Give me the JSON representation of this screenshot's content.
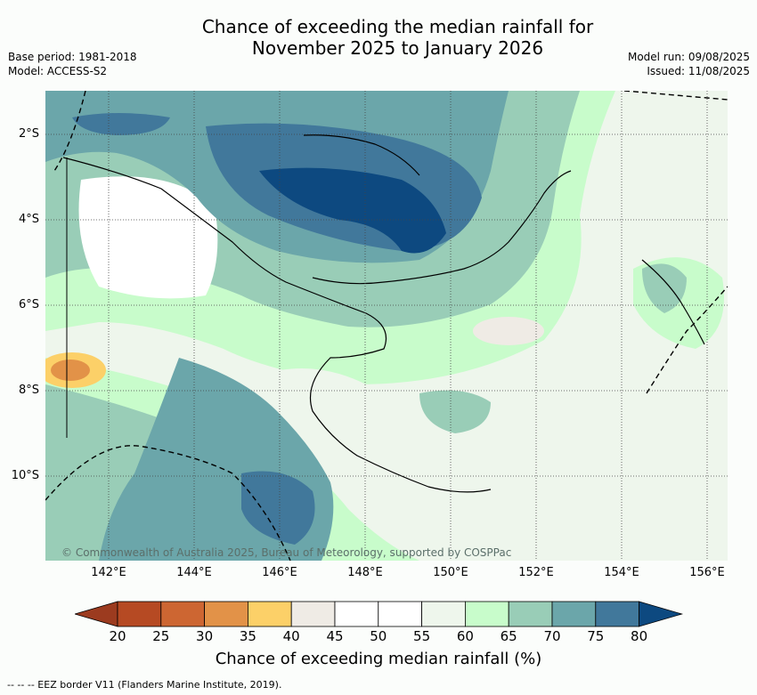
{
  "title_line1": "Chance of exceeding the median rainfall for",
  "title_line2": "November 2025 to January 2026",
  "base_period": "Base period: 1981-2018",
  "model": "Model: ACCESS-S2",
  "model_run": "Model run: 09/08/2025",
  "issued": "Issued: 11/08/2025",
  "copyright": "© Commonwealth of Australia 2025, Bureau of Meteorology, supported by COSPPac",
  "lat_labels": [
    "2°S",
    "4°S",
    "6°S",
    "8°S",
    "10°S"
  ],
  "lon_labels": [
    "142°E",
    "144°E",
    "146°E",
    "148°E",
    "150°E",
    "152°E",
    "154°E",
    "156°E"
  ],
  "colorbar": {
    "ticks": [
      "20",
      "25",
      "30",
      "35",
      "40",
      "45",
      "50",
      "55",
      "60",
      "65",
      "70",
      "75",
      "80"
    ],
    "colors": [
      "#9c3b1f",
      "#b64a23",
      "#cd6632",
      "#e29248",
      "#fcd068",
      "#efebe5",
      "#ffffff",
      "#ffffff",
      "#eef6ec",
      "#c8fccb",
      "#99cdb7",
      "#6ba6aa",
      "#41789b",
      "#0d4980"
    ],
    "label": "Chance of exceeding median rainfall (%)"
  },
  "footer": "-- -- -- EEZ border V11 (Flanders Marine Institute, 2019)."
}
